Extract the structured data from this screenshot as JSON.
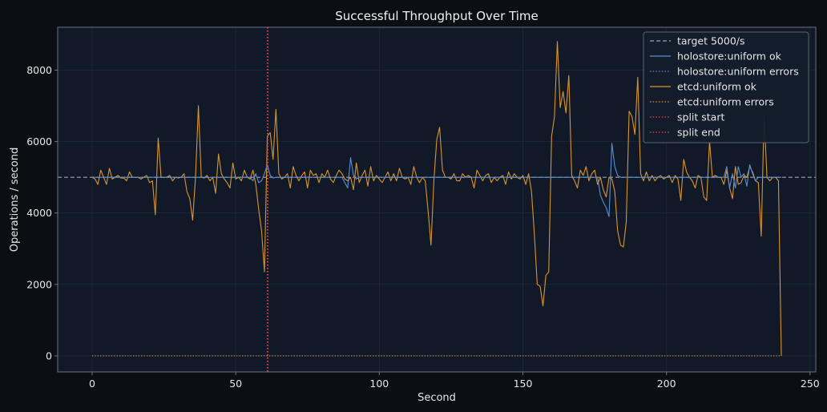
{
  "chart_data": {
    "type": "line",
    "title": "Successful Throughput Over Time",
    "xlabel": "Second",
    "ylabel": "Operations / second",
    "xlim": [
      -12,
      252
    ],
    "ylim": [
      -450,
      9200
    ],
    "xticks": [
      0,
      50,
      100,
      150,
      200,
      250
    ],
    "yticks": [
      0,
      2000,
      4000,
      6000,
      8000
    ],
    "grid": true,
    "legend_position": "top-right",
    "colors": {
      "background": "#0b0f14",
      "plot_bg": "#111827",
      "grid": "#1f2836",
      "spine": "#6b7280",
      "target": "#9ca3af",
      "holostore": "#5b8fd0",
      "etcd": "#d9962b",
      "split": "#ef4444"
    },
    "target": {
      "name": "target 5000/s",
      "value": 5000
    },
    "split_markers": [
      {
        "name": "split start",
        "x": 61
      },
      {
        "name": "split end",
        "x": 61.2
      }
    ],
    "series": [
      {
        "name": "holostore:uniform ok",
        "style": "solid",
        "color": "#5b8fd0",
        "points": [
          [
            0,
            5000
          ],
          [
            12,
            5000
          ],
          [
            24,
            5000
          ],
          [
            36,
            5000
          ],
          [
            48,
            5000
          ],
          [
            55,
            5000
          ],
          [
            56,
            4900
          ],
          [
            57,
            5100
          ],
          [
            58,
            4850
          ],
          [
            59,
            4900
          ],
          [
            60,
            5100
          ],
          [
            61,
            5350
          ],
          [
            62,
            5050
          ],
          [
            63,
            4980
          ],
          [
            64,
            5000
          ],
          [
            80,
            5000
          ],
          [
            87,
            5000
          ],
          [
            88,
            4850
          ],
          [
            89,
            4700
          ],
          [
            90,
            5550
          ],
          [
            91,
            5050
          ],
          [
            92,
            4950
          ],
          [
            93,
            5000
          ],
          [
            120,
            5000
          ],
          [
            150,
            5000
          ],
          [
            175,
            5000
          ],
          [
            176,
            5000
          ],
          [
            177,
            4500
          ],
          [
            178,
            4300
          ],
          [
            179,
            4150
          ],
          [
            180,
            3900
          ],
          [
            181,
            5950
          ],
          [
            182,
            5300
          ],
          [
            183,
            5050
          ],
          [
            184,
            5000
          ],
          [
            200,
            5000
          ],
          [
            220,
            5000
          ],
          [
            221,
            5300
          ],
          [
            222,
            4700
          ],
          [
            223,
            5100
          ],
          [
            224,
            4700
          ],
          [
            225,
            5300
          ],
          [
            226,
            5000
          ],
          [
            227,
            5100
          ],
          [
            228,
            4750
          ],
          [
            229,
            5350
          ],
          [
            230,
            5100
          ],
          [
            231,
            4900
          ],
          [
            232,
            5000
          ],
          [
            240,
            5000
          ]
        ]
      },
      {
        "name": "holostore:uniform errors",
        "style": "dotted",
        "color": "#5b8fd0",
        "points": [
          [
            0,
            0
          ],
          [
            240,
            0
          ]
        ]
      },
      {
        "name": "etcd:uniform ok",
        "style": "solid",
        "color": "#d9962b",
        "points": [
          [
            0,
            5000
          ],
          [
            1,
            4950
          ],
          [
            2,
            4800
          ],
          [
            3,
            5200
          ],
          [
            4,
            5000
          ],
          [
            5,
            4800
          ],
          [
            6,
            5250
          ],
          [
            7,
            4950
          ],
          [
            8,
            5000
          ],
          [
            9,
            5050
          ],
          [
            10,
            4980
          ],
          [
            11,
            4980
          ],
          [
            12,
            4900
          ],
          [
            13,
            5150
          ],
          [
            14,
            5000
          ],
          [
            15,
            5000
          ],
          [
            16,
            5000
          ],
          [
            17,
            4950
          ],
          [
            18,
            5000
          ],
          [
            19,
            5050
          ],
          [
            20,
            4850
          ],
          [
            21,
            4900
          ],
          [
            22,
            3950
          ],
          [
            23,
            6100
          ],
          [
            24,
            5000
          ],
          [
            25,
            5000
          ],
          [
            26,
            5000
          ],
          [
            27,
            5050
          ],
          [
            28,
            4900
          ],
          [
            29,
            5000
          ],
          [
            30,
            4980
          ],
          [
            31,
            5000
          ],
          [
            32,
            5100
          ],
          [
            33,
            4600
          ],
          [
            34,
            4400
          ],
          [
            35,
            3800
          ],
          [
            36,
            5000
          ],
          [
            37,
            7000
          ],
          [
            38,
            5000
          ],
          [
            39,
            4980
          ],
          [
            40,
            5050
          ],
          [
            41,
            4900
          ],
          [
            42,
            5000
          ],
          [
            43,
            4550
          ],
          [
            44,
            5650
          ],
          [
            45,
            5100
          ],
          [
            46,
            4950
          ],
          [
            47,
            4850
          ],
          [
            48,
            4700
          ],
          [
            49,
            5400
          ],
          [
            50,
            4950
          ],
          [
            51,
            5000
          ],
          [
            52,
            4900
          ],
          [
            53,
            5200
          ],
          [
            54,
            5000
          ],
          [
            55,
            4950
          ],
          [
            56,
            5200
          ],
          [
            57,
            4800
          ],
          [
            58,
            4100
          ],
          [
            59,
            3500
          ],
          [
            60,
            2350
          ],
          [
            61,
            6150
          ],
          [
            62,
            6250
          ],
          [
            63,
            5500
          ],
          [
            64,
            6900
          ],
          [
            65,
            5100
          ],
          [
            66,
            4950
          ],
          [
            67,
            5000
          ],
          [
            68,
            5100
          ],
          [
            69,
            4700
          ],
          [
            70,
            5300
          ],
          [
            71,
            5050
          ],
          [
            72,
            4900
          ],
          [
            73,
            5050
          ],
          [
            74,
            5150
          ],
          [
            75,
            4700
          ],
          [
            76,
            5200
          ],
          [
            77,
            5050
          ],
          [
            78,
            5100
          ],
          [
            79,
            4850
          ],
          [
            80,
            5100
          ],
          [
            81,
            5000
          ],
          [
            82,
            5200
          ],
          [
            83,
            4950
          ],
          [
            84,
            4850
          ],
          [
            85,
            5050
          ],
          [
            86,
            5200
          ],
          [
            87,
            5100
          ],
          [
            88,
            4950
          ],
          [
            89,
            4900
          ],
          [
            90,
            5000
          ],
          [
            91,
            4650
          ],
          [
            92,
            5400
          ],
          [
            93,
            4850
          ],
          [
            94,
            5050
          ],
          [
            95,
            5200
          ],
          [
            96,
            4750
          ],
          [
            97,
            5300
          ],
          [
            98,
            4900
          ],
          [
            99,
            5050
          ],
          [
            100,
            4950
          ],
          [
            101,
            4850
          ],
          [
            102,
            5000
          ],
          [
            103,
            5150
          ],
          [
            104,
            4900
          ],
          [
            105,
            5100
          ],
          [
            106,
            4900
          ],
          [
            107,
            5250
          ],
          [
            108,
            5000
          ],
          [
            109,
            4950
          ],
          [
            110,
            5000
          ],
          [
            111,
            4800
          ],
          [
            112,
            5300
          ],
          [
            113,
            5000
          ],
          [
            114,
            4850
          ],
          [
            115,
            5000
          ],
          [
            116,
            4900
          ],
          [
            117,
            4050
          ],
          [
            118,
            3100
          ],
          [
            119,
            4900
          ],
          [
            120,
            6050
          ],
          [
            121,
            6400
          ],
          [
            122,
            5200
          ],
          [
            123,
            5000
          ],
          [
            124,
            5000
          ],
          [
            125,
            4950
          ],
          [
            126,
            5100
          ],
          [
            127,
            4900
          ],
          [
            128,
            4900
          ],
          [
            129,
            5100
          ],
          [
            130,
            5000
          ],
          [
            131,
            5050
          ],
          [
            132,
            5000
          ],
          [
            133,
            4700
          ],
          [
            134,
            5200
          ],
          [
            135,
            5050
          ],
          [
            136,
            4900
          ],
          [
            137,
            5050
          ],
          [
            138,
            5100
          ],
          [
            139,
            4850
          ],
          [
            140,
            5000
          ],
          [
            141,
            4900
          ],
          [
            142,
            5000
          ],
          [
            143,
            5050
          ],
          [
            144,
            4800
          ],
          [
            145,
            5150
          ],
          [
            146,
            4950
          ],
          [
            147,
            5100
          ],
          [
            148,
            5000
          ],
          [
            149,
            4950
          ],
          [
            150,
            5050
          ],
          [
            151,
            4800
          ],
          [
            152,
            5100
          ],
          [
            153,
            4600
          ],
          [
            154,
            3400
          ],
          [
            155,
            2000
          ],
          [
            156,
            1950
          ],
          [
            157,
            1400
          ],
          [
            158,
            2250
          ],
          [
            159,
            2350
          ],
          [
            160,
            6150
          ],
          [
            161,
            6700
          ],
          [
            162,
            8800
          ],
          [
            163,
            6950
          ],
          [
            164,
            7400
          ],
          [
            165,
            6800
          ],
          [
            166,
            7850
          ],
          [
            167,
            5050
          ],
          [
            168,
            4900
          ],
          [
            169,
            4700
          ],
          [
            170,
            5200
          ],
          [
            171,
            5050
          ],
          [
            172,
            5300
          ],
          [
            173,
            4900
          ],
          [
            174,
            5100
          ],
          [
            175,
            5200
          ],
          [
            176,
            4800
          ],
          [
            177,
            5000
          ],
          [
            178,
            4650
          ],
          [
            179,
            4450
          ],
          [
            180,
            5000
          ],
          [
            181,
            4950
          ],
          [
            182,
            4600
          ],
          [
            183,
            3500
          ],
          [
            184,
            3100
          ],
          [
            185,
            3050
          ],
          [
            186,
            3750
          ],
          [
            187,
            6850
          ],
          [
            188,
            6700
          ],
          [
            189,
            6200
          ],
          [
            190,
            7800
          ],
          [
            191,
            5100
          ],
          [
            192,
            4900
          ],
          [
            193,
            5150
          ],
          [
            194,
            4900
          ],
          [
            195,
            5050
          ],
          [
            196,
            4900
          ],
          [
            197,
            5000
          ],
          [
            198,
            5050
          ],
          [
            199,
            4950
          ],
          [
            200,
            5000
          ],
          [
            201,
            5050
          ],
          [
            202,
            4850
          ],
          [
            203,
            5050
          ],
          [
            204,
            4950
          ],
          [
            205,
            4350
          ],
          [
            206,
            5500
          ],
          [
            207,
            5150
          ],
          [
            208,
            5000
          ],
          [
            209,
            4900
          ],
          [
            210,
            4700
          ],
          [
            211,
            5050
          ],
          [
            212,
            5000
          ],
          [
            213,
            4450
          ],
          [
            214,
            4350
          ],
          [
            215,
            6000
          ],
          [
            216,
            5000
          ],
          [
            217,
            5050
          ],
          [
            218,
            5000
          ],
          [
            219,
            5000
          ],
          [
            220,
            4800
          ],
          [
            221,
            5200
          ],
          [
            222,
            4700
          ],
          [
            223,
            4400
          ],
          [
            224,
            5300
          ],
          [
            225,
            4800
          ],
          [
            226,
            4850
          ],
          [
            227,
            5050
          ],
          [
            228,
            5000
          ],
          [
            229,
            5300
          ],
          [
            230,
            5150
          ],
          [
            231,
            4900
          ],
          [
            232,
            4850
          ],
          [
            233,
            3350
          ],
          [
            234,
            6750
          ],
          [
            235,
            5000
          ],
          [
            236,
            4900
          ],
          [
            237,
            5000
          ],
          [
            238,
            5000
          ],
          [
            239,
            4900
          ],
          [
            240,
            0
          ]
        ]
      },
      {
        "name": "etcd:uniform errors",
        "style": "dotted",
        "color": "#d9962b",
        "points": [
          [
            0,
            0
          ],
          [
            240,
            0
          ]
        ]
      }
    ]
  }
}
